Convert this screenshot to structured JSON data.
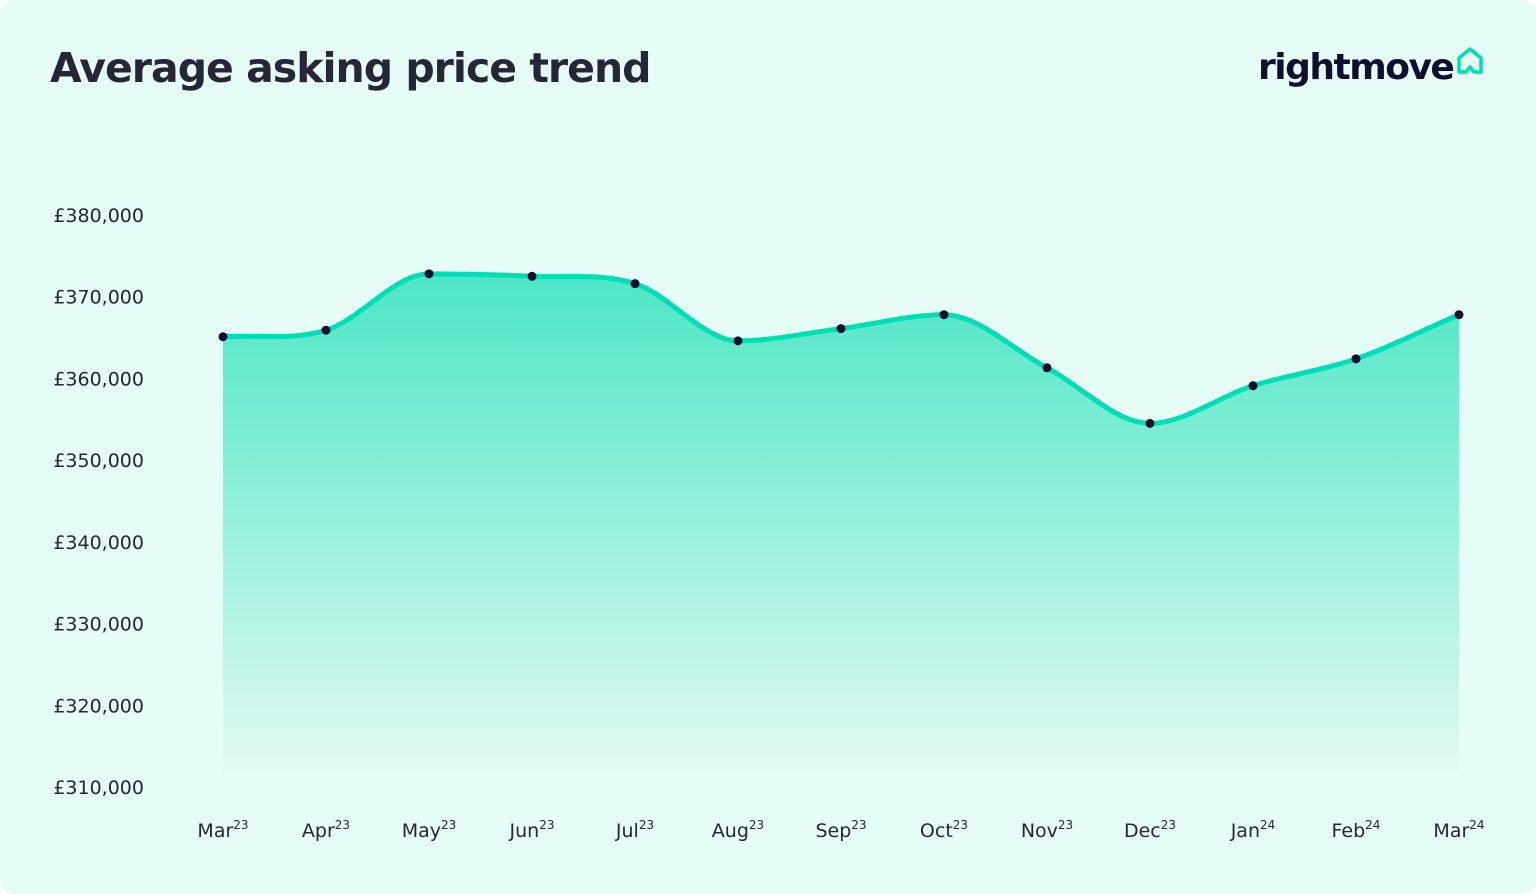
{
  "brand": {
    "name": "rightmove",
    "accent": "#00deb6",
    "dark": "#0f0f2e"
  },
  "chart_data": {
    "type": "area",
    "title": "Average asking price trend",
    "categories": [
      {
        "month": "Mar",
        "year": "23"
      },
      {
        "month": "Apr",
        "year": "23"
      },
      {
        "month": "May",
        "year": "23"
      },
      {
        "month": "Jun",
        "year": "23"
      },
      {
        "month": "Jul",
        "year": "23"
      },
      {
        "month": "Aug",
        "year": "23"
      },
      {
        "month": "Sep",
        "year": "23"
      },
      {
        "month": "Oct",
        "year": "23"
      },
      {
        "month": "Nov",
        "year": "23"
      },
      {
        "month": "Dec",
        "year": "23"
      },
      {
        "month": "Jan",
        "year": "24"
      },
      {
        "month": "Feb",
        "year": "24"
      },
      {
        "month": "Mar",
        "year": "24"
      }
    ],
    "values": [
      365100,
      365900,
      372800,
      372500,
      371600,
      364600,
      366100,
      367800,
      361300,
      354500,
      359100,
      362400,
      367800
    ],
    "ylim": [
      310000,
      380000
    ],
    "yticks": [
      {
        "value": 380000,
        "label": "£380,000"
      },
      {
        "value": 370000,
        "label": "£370,000"
      },
      {
        "value": 360000,
        "label": "£360,000"
      },
      {
        "value": 350000,
        "label": "£350,000"
      },
      {
        "value": 340000,
        "label": "£340,000"
      },
      {
        "value": 330000,
        "label": "£330,000"
      },
      {
        "value": 320000,
        "label": "£320,000"
      },
      {
        "value": 310000,
        "label": "£310,000"
      }
    ],
    "grid": false,
    "line_color": "#00deb6",
    "marker_color": "#0f0f2e"
  }
}
